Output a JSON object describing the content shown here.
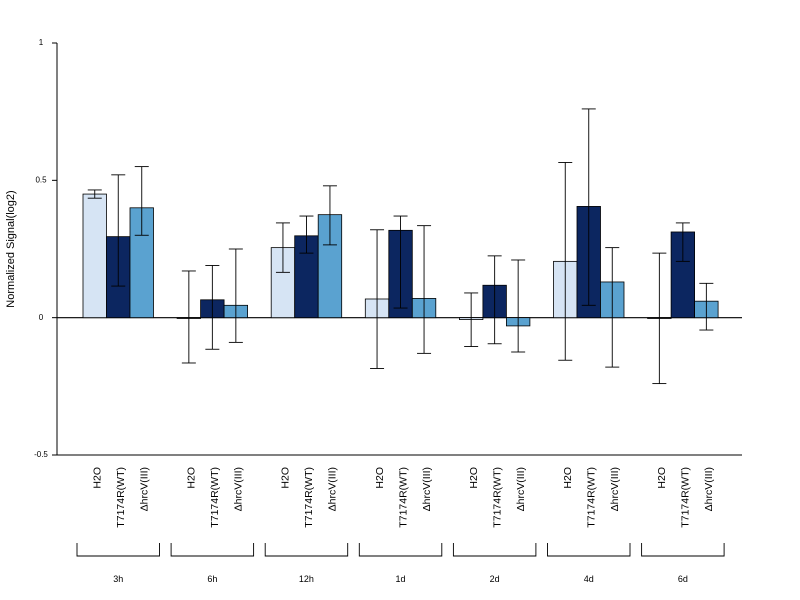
{
  "chart_data": {
    "type": "bar",
    "title": "",
    "xlabel": "",
    "ylabel": "Normalized Signal(log2)",
    "ylim": [
      -0.5,
      1
    ],
    "yticks": [
      -0.5,
      0,
      0.5,
      1
    ],
    "ytick_labels": [
      "-0.5",
      "0",
      "0.5",
      "1"
    ],
    "grid": false,
    "legend": "none",
    "categories": [
      "3h",
      "6h",
      "12h",
      "1d",
      "2d",
      "4d",
      "6d"
    ],
    "series": [
      {
        "name": "H2O",
        "color": "#d6e4f4",
        "values": [
          0.45,
          0.0,
          0.255,
          0.068,
          -0.007,
          0.205,
          -0.003
        ],
        "err_low": [
          0.435,
          -0.165,
          0.165,
          -0.185,
          -0.105,
          -0.155,
          -0.24
        ],
        "err_high": [
          0.465,
          0.17,
          0.345,
          0.32,
          0.09,
          0.565,
          0.235
        ]
      },
      {
        "name": "T7174R(WT)",
        "color": "#0c2660",
        "values": [
          0.295,
          0.065,
          0.298,
          0.318,
          0.118,
          0.405,
          0.312
        ],
        "err_low": [
          0.115,
          -0.115,
          0.235,
          0.035,
          -0.095,
          0.045,
          0.205
        ],
        "err_high": [
          0.52,
          0.19,
          0.37,
          0.37,
          0.225,
          0.76,
          0.345
        ]
      },
      {
        "name": "ΔhrcV(III)",
        "color": "#5aa2d0",
        "values": [
          0.4,
          0.045,
          0.375,
          0.07,
          -0.03,
          0.13,
          0.06
        ],
        "err_low": [
          0.3,
          -0.09,
          0.265,
          -0.13,
          -0.125,
          -0.18,
          -0.045
        ],
        "err_high": [
          0.55,
          0.25,
          0.48,
          0.335,
          0.21,
          0.255,
          0.125
        ]
      }
    ],
    "bar_tick_labels": [
      "H2O",
      "T7174R(WT)",
      "ΔhrcV(III)"
    ]
  }
}
